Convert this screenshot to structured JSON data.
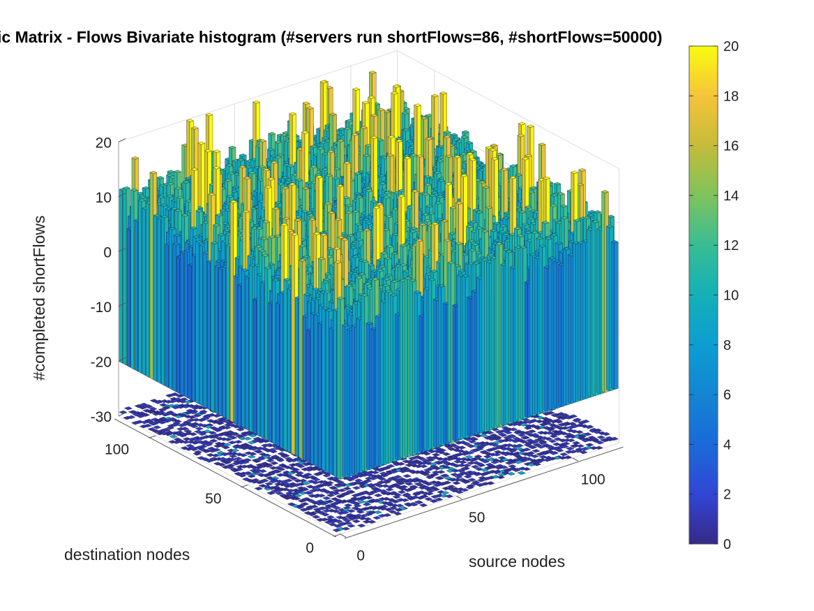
{
  "chart_data": {
    "type": "bar3",
    "title": "ic Matrix - Flows Bivariate histogram (#servers run shortFlows=86, #shortFlows=50000)",
    "xlabel": "source nodes",
    "ylabel": "destination nodes",
    "zlabel": "#completed shortFlows",
    "x_ticks": [
      "0",
      "50",
      "100"
    ],
    "y_ticks": [
      "0",
      "50",
      "100"
    ],
    "z_ticks": [
      "20",
      "10",
      "0",
      "-10",
      "-20",
      "-30"
    ],
    "zlim": [
      -30,
      20
    ],
    "grid": true,
    "colormap": "parula",
    "colorbar": {
      "ticks": [
        "20",
        "18",
        "16",
        "14",
        "12",
        "10",
        "8",
        "6",
        "4",
        "2",
        "0"
      ],
      "range": [
        0,
        20
      ]
    },
    "panels": [
      {
        "name": "upper histogram",
        "z_base": 0,
        "approx_mean_height": 7,
        "max_height": 20
      },
      {
        "name": "lower histogram",
        "z_base": -30,
        "approx_mean_height": 1
      }
    ]
  }
}
